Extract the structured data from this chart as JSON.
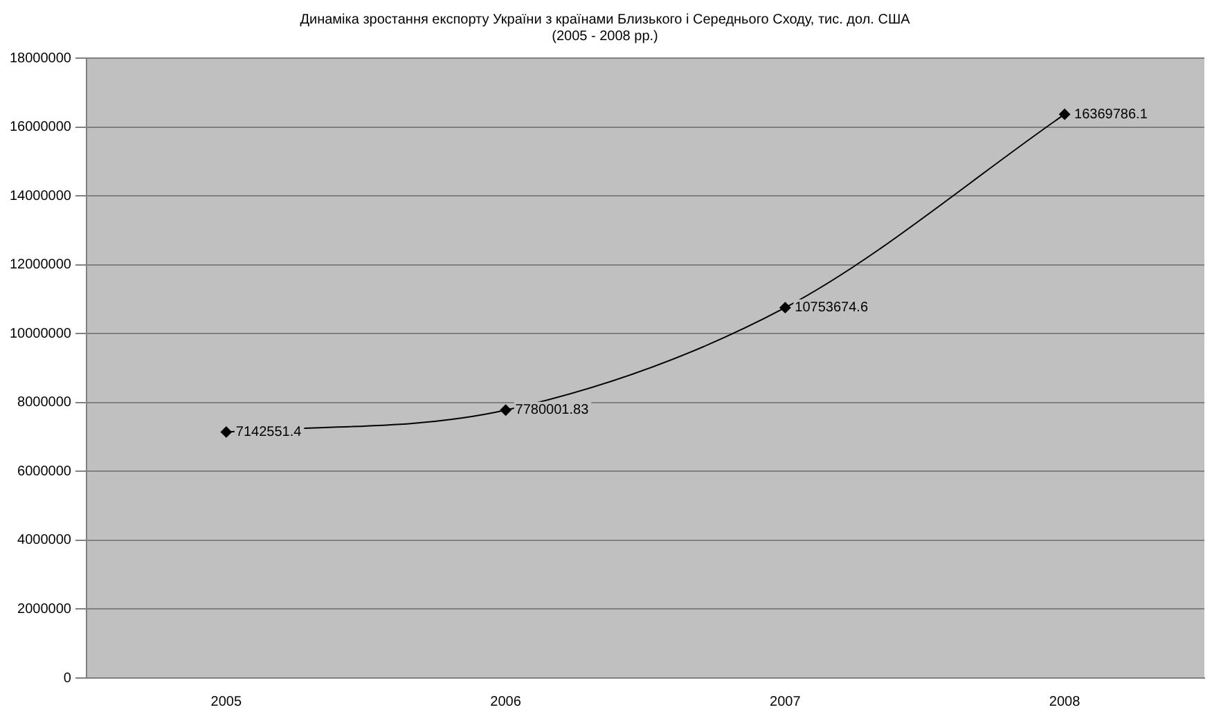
{
  "chart_data": {
    "type": "line",
    "title": [
      "Динаміка зростання експорту України з країнами Близького і Середнього Сходу, тис. дол. США",
      "(2005 - 2008 рр.)"
    ],
    "categories": [
      "2005",
      "2006",
      "2007",
      "2008"
    ],
    "series": [
      {
        "color": "#000000",
        "values": [
          7142551.4,
          7780001.83,
          10753674.6,
          16369786.1
        ],
        "value_labels": [
          "7142551.4",
          "7780001.83",
          "10753674.6",
          "16369786.1"
        ]
      }
    ],
    "ylim": [
      0,
      18000000
    ],
    "yticks": [
      0,
      2000000,
      4000000,
      6000000,
      8000000,
      10000000,
      12000000,
      14000000,
      16000000,
      18000000
    ],
    "grid": "y",
    "legend": false,
    "marker": "diamond",
    "line_style": "solid"
  }
}
